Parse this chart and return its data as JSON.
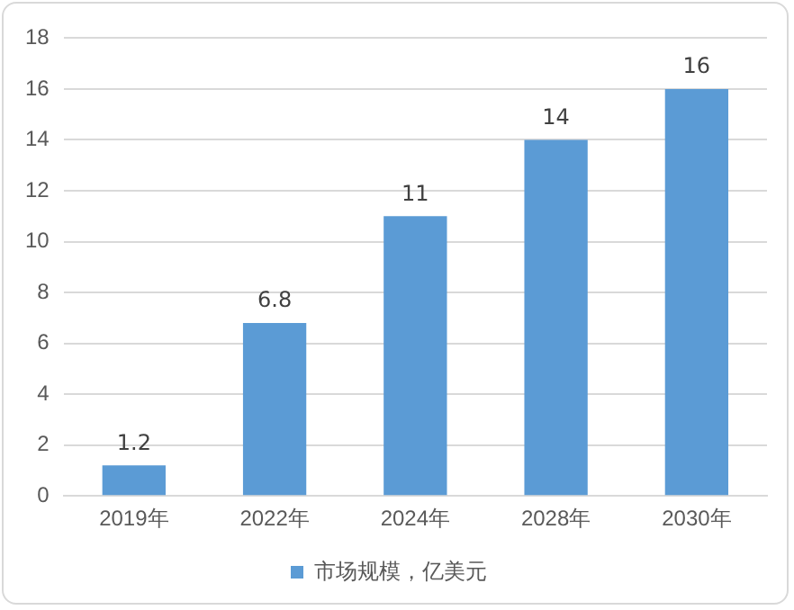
{
  "chart_data": {
    "type": "bar",
    "categories": [
      "2019年",
      "2022年",
      "2024年",
      "2028年",
      "2030年"
    ],
    "series": [
      {
        "name": "市场规模，亿美元",
        "color": "#5b9bd5",
        "values": [
          1.2,
          6.8,
          11,
          14,
          16
        ]
      }
    ],
    "ylim": [
      0,
      18
    ],
    "yticks": [
      0,
      2,
      4,
      6,
      8,
      10,
      12,
      14,
      16,
      18
    ],
    "grid": "y",
    "legend": "bottom",
    "data_labels": true
  }
}
